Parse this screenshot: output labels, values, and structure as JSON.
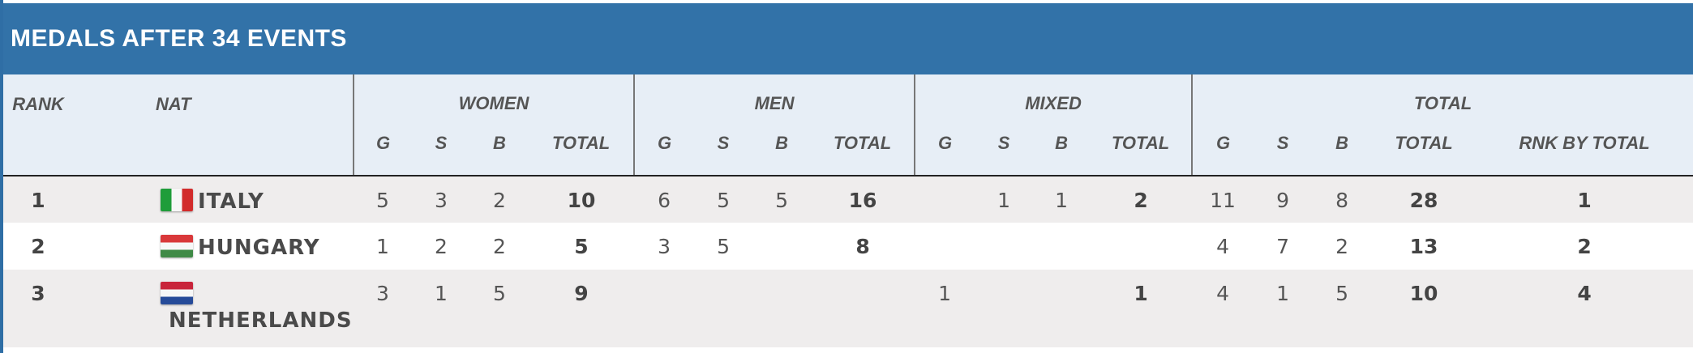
{
  "title": "MEDALS AFTER 34 EVENTS",
  "headers": {
    "rank": "RANK",
    "nat": "NAT",
    "women": "WOMEN",
    "men": "MEN",
    "mixed": "MIXED",
    "total": "TOTAL",
    "g": "G",
    "s": "S",
    "b": "B",
    "total_sub": "TOTAL",
    "rank_by_total": "RNK BY TOTAL"
  },
  "rows": [
    {
      "rank": "1",
      "nat": "ITALY",
      "flag_colors": [
        "#1f9d3a",
        "#f7f7f7",
        "#d22b2b"
      ],
      "flag_orientation": "vertical",
      "women": {
        "g": "5",
        "s": "3",
        "b": "2",
        "total": "10"
      },
      "men": {
        "g": "6",
        "s": "5",
        "b": "5",
        "total": "16"
      },
      "mixed": {
        "g": "",
        "s": "1",
        "b": "1",
        "total": "2"
      },
      "total": {
        "g": "11",
        "s": "9",
        "b": "8",
        "total": "28"
      },
      "rank_by_total": "1"
    },
    {
      "rank": "2",
      "nat": "HUNGARY",
      "flag_colors": [
        "#d9383a",
        "#f7f7f7",
        "#3f8a46"
      ],
      "flag_orientation": "horizontal",
      "women": {
        "g": "1",
        "s": "2",
        "b": "2",
        "total": "5"
      },
      "men": {
        "g": "3",
        "s": "5",
        "b": "",
        "total": "8"
      },
      "mixed": {
        "g": "",
        "s": "",
        "b": "",
        "total": ""
      },
      "total": {
        "g": "4",
        "s": "7",
        "b": "2",
        "total": "13"
      },
      "rank_by_total": "2"
    },
    {
      "rank": "3",
      "nat": "NETHERLANDS",
      "flag_colors": [
        "#c8243a",
        "#f7f7f7",
        "#264b99"
      ],
      "flag_orientation": "horizontal",
      "women": {
        "g": "3",
        "s": "1",
        "b": "5",
        "total": "9"
      },
      "men": {
        "g": "",
        "s": "",
        "b": "",
        "total": ""
      },
      "mixed": {
        "g": "1",
        "s": "",
        "b": "",
        "total": "1"
      },
      "total": {
        "g": "4",
        "s": "1",
        "b": "5",
        "total": "10"
      },
      "rank_by_total": "4"
    }
  ]
}
